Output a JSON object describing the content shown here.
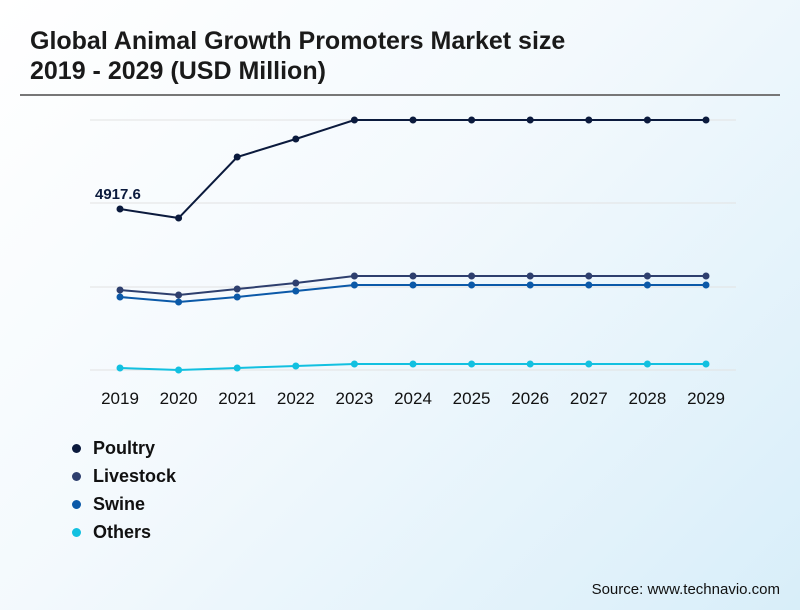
{
  "title_line1": "Global Animal Growth Promoters Market size",
  "title_line2": "2019 - 2029 (USD Million)",
  "source": "Source: www.technavio.com",
  "chart_data": {
    "type": "line",
    "x": [
      "2019",
      "2020",
      "2021",
      "2022",
      "2023",
      "2024",
      "2025",
      "2026",
      "2027",
      "2028",
      "2029"
    ],
    "ylim": [
      0,
      7405
    ],
    "grid": true,
    "legend_position": "bottom-left",
    "annotations": [
      {
        "series": "Poultry",
        "x": "2019",
        "label": "4917.6"
      }
    ],
    "series": [
      {
        "name": "Poultry",
        "color": "#0b1a3d",
        "values": [
          4917.6,
          4666,
          6371,
          6874,
          7405,
          7405,
          7405,
          7405,
          7405,
          7405,
          7405
        ]
      },
      {
        "name": "Livestock",
        "color": "#2e3f6e",
        "values": [
          2654,
          2515,
          2682,
          2850,
          3046,
          3046,
          3046,
          3046,
          3046,
          3046,
          3046
        ]
      },
      {
        "name": "Swine",
        "color": "#0b59a8",
        "values": [
          2459,
          2319,
          2459,
          2627,
          2794,
          2794,
          2794,
          2794,
          2794,
          2794,
          2794
        ]
      },
      {
        "name": "Others",
        "color": "#12c0e0",
        "values": [
          475,
          419,
          475,
          531,
          587,
          587,
          587,
          587,
          587,
          587,
          587
        ]
      }
    ]
  }
}
